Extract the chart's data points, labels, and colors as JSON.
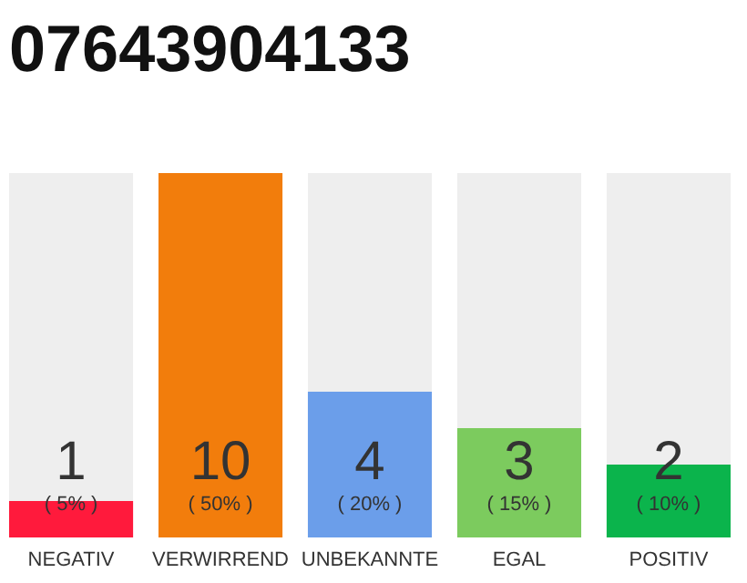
{
  "chart_data": {
    "type": "bar",
    "title": "07643904133",
    "categories": [
      "NEGATIV",
      "VERWIRREND",
      "UNBEKANNTE",
      "EGAL",
      "POSITIV"
    ],
    "values": [
      1,
      10,
      4,
      3,
      2
    ],
    "colors": [
      "#ff1a3c",
      "#f27d0c",
      "#6b9eea",
      "#7ccb5e",
      "#0bb44c"
    ],
    "data_labels": true,
    "annotations": [
      "( 5% )",
      "( 50% )",
      "( 20% )",
      "( 15% )",
      "( 10% )"
    ]
  }
}
